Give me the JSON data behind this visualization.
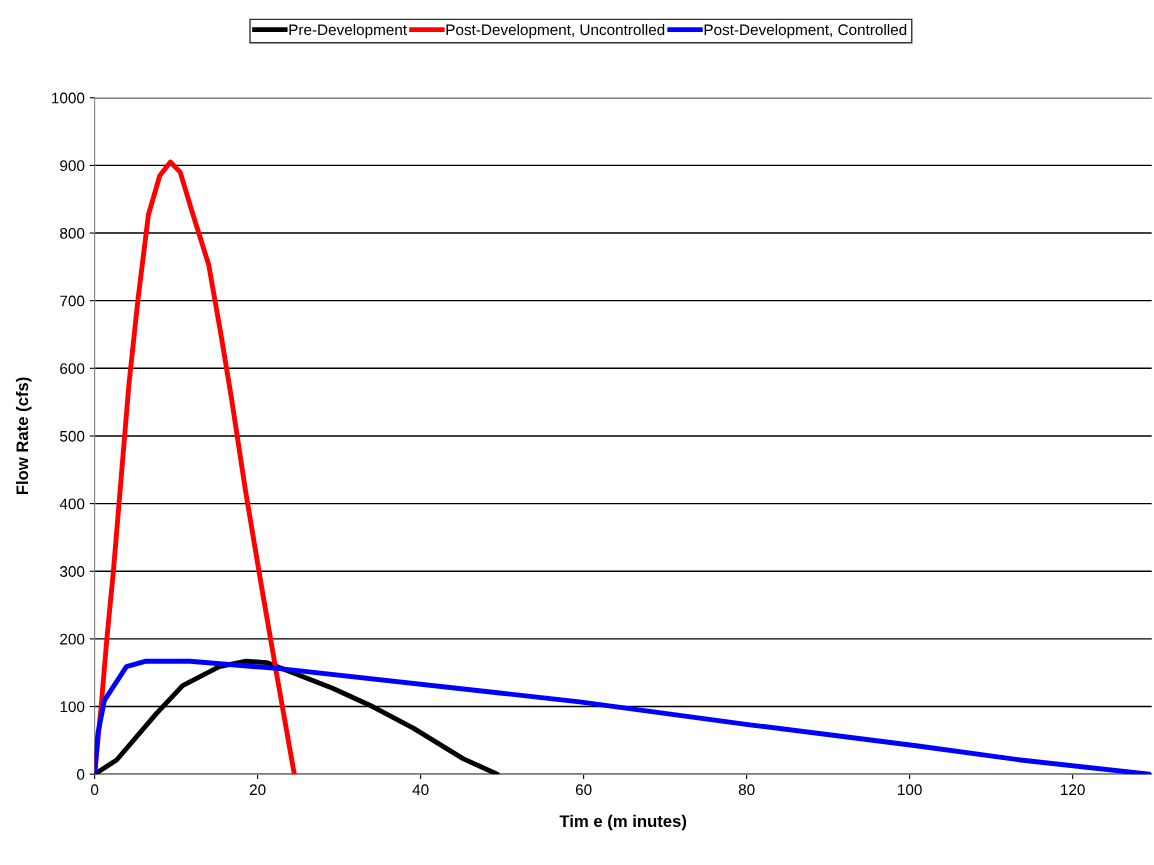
{
  "chart_data": {
    "type": "line",
    "xlabel": "Tim e (m inutes)",
    "ylabel": "Flow Rate (cfs)",
    "xlim": [
      0,
      129.7
    ],
    "xticks": [
      0,
      20,
      40,
      60,
      80,
      100,
      120
    ],
    "ylim": [
      0,
      1000
    ],
    "yticks": [
      0,
      100,
      200,
      300,
      400,
      500,
      600,
      700,
      800,
      900,
      1000
    ],
    "grid": "y",
    "legend": "top",
    "marker": "none",
    "line_style": "solid",
    "series": [
      {
        "name": "Pre-Development",
        "color": "#000000",
        "x": [
          0,
          2.7,
          7.6,
          10.8,
          15.3,
          18.6,
          21.1,
          29.2,
          34.1,
          39.1,
          45.2,
          49.4
        ],
        "values": [
          0,
          21,
          90,
          131,
          159,
          167,
          165,
          127,
          100,
          68,
          23,
          0
        ]
      },
      {
        "name": "Post-Development, Uncontrolled",
        "color": "#ff0000",
        "x": [
          0,
          0.8,
          1.5,
          2.3,
          3.2,
          4.2,
          5.3,
          6.6,
          8,
          9.3,
          10.5,
          12,
          14,
          15.5,
          16.8,
          18.5,
          20.4,
          22.3,
          24.5
        ],
        "values": [
          0,
          100,
          200,
          300,
          430,
          575,
          700,
          827,
          885,
          905,
          890,
          830,
          753,
          650,
          555,
          420,
          283,
          150,
          0
        ]
      },
      {
        "name": "Post-Development, Controlled",
        "color": "#0000ff",
        "x": [
          0,
          0.4,
          1.2,
          3.9,
          6.3,
          11.7,
          22.7,
          49.7,
          59.5,
          80.4,
          100.8,
          113.6,
          129.4
        ],
        "values": [
          0,
          60,
          109,
          159,
          167,
          167,
          156,
          120,
          107,
          73,
          42,
          21,
          0
        ]
      }
    ]
  }
}
